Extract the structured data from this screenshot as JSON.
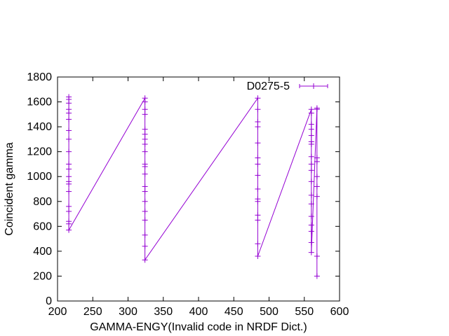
{
  "chart_data": {
    "type": "line",
    "title": "",
    "xlabel": "GAMMA-ENGY(Invalid code in NRDF Dict.)",
    "ylabel": "Coincident gamma",
    "xlim": [
      200,
      600
    ],
    "ylim": [
      0,
      1800
    ],
    "xticks": [
      200,
      250,
      300,
      350,
      400,
      450,
      500,
      550,
      600
    ],
    "yticks": [
      0,
      200,
      400,
      600,
      800,
      1000,
      1200,
      1400,
      1600,
      1800
    ],
    "grid": false,
    "legend_position": "top-right",
    "colors": {
      "series": "#9400d3",
      "axis": "#000000"
    },
    "series": [
      {
        "name": "D0275-5",
        "marker": "plus",
        "error_bars": "vertical",
        "x": [
          216,
          216,
          216,
          216,
          216,
          216,
          216,
          216,
          216,
          216,
          216,
          216,
          216,
          216,
          216,
          216,
          216,
          216,
          216,
          216,
          324,
          324,
          324,
          324,
          324,
          324,
          324,
          324,
          324,
          324,
          324,
          324,
          324,
          324,
          324,
          324,
          324,
          324,
          324,
          324,
          484,
          484,
          484,
          484,
          484,
          484,
          484,
          484,
          484,
          484,
          484,
          484,
          484,
          484,
          484,
          560,
          560,
          560,
          560,
          560,
          560,
          560,
          560,
          560,
          560,
          560,
          560,
          560,
          560,
          560,
          560,
          560,
          560,
          568,
          568,
          568,
          568,
          568,
          568,
          568,
          568,
          568
        ],
        "y": [
          1640,
          1620,
          1590,
          1540,
          1510,
          1460,
          1370,
          1300,
          1200,
          1100,
          1060,
          1000,
          960,
          940,
          880,
          760,
          720,
          640,
          620,
          570,
          1630,
          1600,
          1540,
          1500,
          1380,
          1340,
          1300,
          1260,
          1200,
          1100,
          1080,
          1020,
          920,
          880,
          800,
          720,
          650,
          530,
          440,
          330,
          1630,
          1540,
          1440,
          1400,
          1270,
          1150,
          1100,
          1010,
          900,
          820,
          800,
          690,
          650,
          460,
          360,
          1540,
          1510,
          1420,
          1380,
          1330,
          1280,
          1260,
          1160,
          1100,
          1050,
          960,
          850,
          780,
          680,
          610,
          560,
          470,
          390,
          1550,
          1540,
          1150,
          1120,
          1000,
          920,
          840,
          360,
          200
        ]
      }
    ]
  }
}
